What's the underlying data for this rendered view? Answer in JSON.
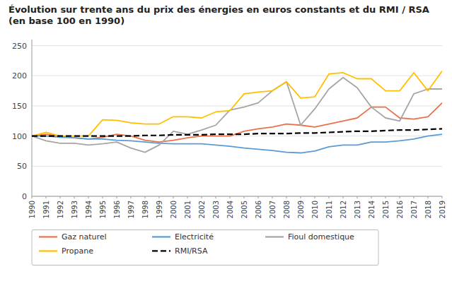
{
  "chart_data": {
    "type": "line",
    "title": "Évolution sur trente ans du prix des énergies en euros constants et du RMI / RSA (en base 100 en 1990)",
    "x": [
      1990,
      1991,
      1992,
      1993,
      1994,
      1995,
      1996,
      1997,
      1998,
      1999,
      2000,
      2001,
      2002,
      2003,
      2004,
      2005,
      2006,
      2007,
      2008,
      2009,
      2010,
      2011,
      2012,
      2013,
      2014,
      2015,
      2016,
      2017,
      2018,
      2019
    ],
    "xlim": [
      1990,
      2019
    ],
    "xticks": [
      1990,
      1991,
      1992,
      1993,
      1994,
      1995,
      1996,
      1997,
      1998,
      1999,
      2000,
      2001,
      2002,
      2003,
      2004,
      2005,
      2006,
      2007,
      2008,
      2009,
      2010,
      2011,
      2012,
      2013,
      2014,
      2015,
      2016,
      2017,
      2018,
      2019
    ],
    "ylim": [
      0,
      260
    ],
    "yticks": [
      0,
      50,
      100,
      150,
      200,
      250
    ],
    "grid": true,
    "legend": "bottom",
    "series": [
      {
        "name": "Gaz naturel",
        "color": "#E8724A",
        "line_style": "solid",
        "values": [
          100,
          103,
          100,
          97,
          95,
          98,
          103,
          100,
          93,
          90,
          93,
          97,
          100,
          100,
          100,
          108,
          112,
          115,
          120,
          118,
          115,
          120,
          125,
          130,
          148,
          148,
          130,
          128,
          132,
          155
        ]
      },
      {
        "name": "Electricité",
        "color": "#5B9BD5",
        "line_style": "solid",
        "values": [
          100,
          100,
          98,
          97,
          95,
          95,
          93,
          92,
          90,
          88,
          87,
          87,
          87,
          85,
          83,
          80,
          78,
          76,
          73,
          72,
          75,
          82,
          85,
          85,
          90,
          90,
          92,
          95,
          100,
          103
        ]
      },
      {
        "name": "Fioul domestique",
        "color": "#A5A5A5",
        "line_style": "solid",
        "values": [
          100,
          92,
          88,
          88,
          85,
          87,
          90,
          80,
          73,
          85,
          108,
          103,
          110,
          118,
          143,
          148,
          155,
          175,
          190,
          118,
          145,
          178,
          197,
          180,
          148,
          130,
          125,
          170,
          178,
          178
        ]
      },
      {
        "name": "Propane",
        "color": "#FFC000",
        "line_style": "solid",
        "values": [
          100,
          106,
          100,
          100,
          100,
          127,
          126,
          122,
          120,
          120,
          132,
          132,
          130,
          140,
          142,
          170,
          173,
          175,
          190,
          163,
          165,
          203,
          205,
          195,
          195,
          175,
          175,
          205,
          175,
          208
        ]
      },
      {
        "name": "RMI/RSA",
        "color": "#000000",
        "line_style": "dashed",
        "values": [
          100,
          100,
          100,
          100,
          100,
          100,
          100,
          100,
          101,
          101,
          102,
          102,
          102,
          103,
          103,
          103,
          104,
          104,
          104,
          105,
          105,
          106,
          107,
          108,
          108,
          109,
          110,
          110,
          111,
          112
        ]
      }
    ]
  }
}
